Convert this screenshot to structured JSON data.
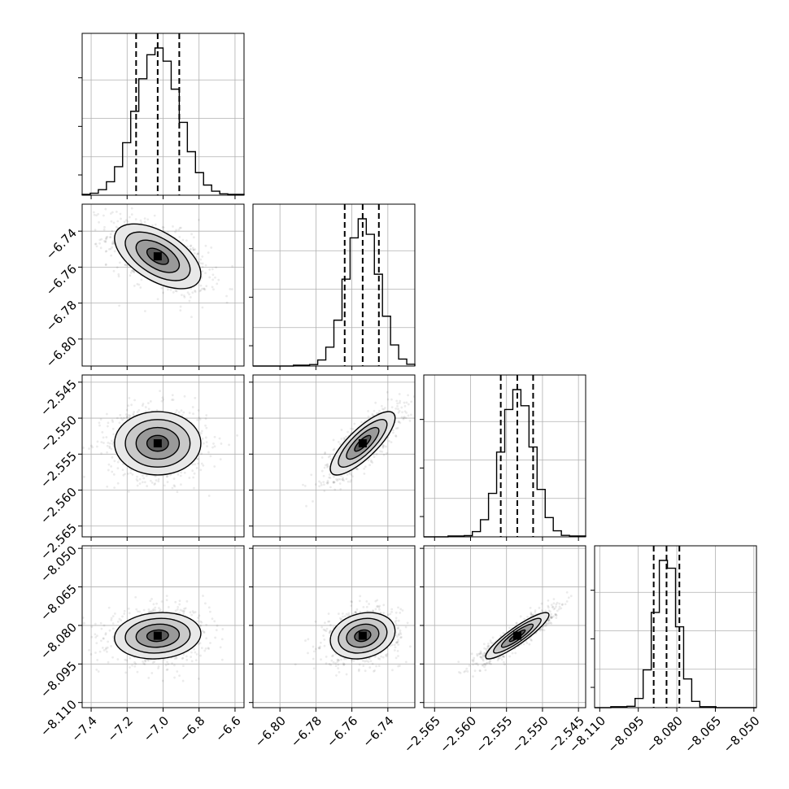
{
  "chart_data": {
    "type": "corner",
    "parameters": [
      {
        "mean": -7.03,
        "sd": 0.12,
        "quantiles": [
          -7.15,
          -7.03,
          -6.91
        ],
        "range": [
          -7.45,
          -6.55
        ],
        "ticks": [
          -7.4,
          -7.2,
          -7.0,
          -6.8,
          -6.6
        ],
        "tick_labels": [
          "−7.4",
          "−7.2",
          "−7.0",
          "−6.8",
          "−6.6"
        ]
      },
      {
        "mean": -6.754,
        "sd": 0.009,
        "quantiles": [
          -6.764,
          -6.754,
          -6.745
        ],
        "range": [
          -6.815,
          -6.725
        ],
        "ticks": [
          -6.8,
          -6.78,
          -6.76,
          -6.74
        ],
        "tick_labels": [
          "−6.80",
          "−6.78",
          "−6.76",
          "−6.74"
        ]
      },
      {
        "mean": -2.5535,
        "sd": 0.0022,
        "quantiles": [
          -2.5558,
          -2.5535,
          -2.5513
        ],
        "range": [
          -2.5665,
          -2.544
        ],
        "ticks": [
          -2.565,
          -2.56,
          -2.555,
          -2.55,
          -2.545
        ],
        "tick_labels": [
          "−2.565",
          "−2.560",
          "−2.555",
          "−2.550",
          "−2.545"
        ]
      },
      {
        "mean": -8.084,
        "sd": 0.0045,
        "quantiles": [
          -8.089,
          -8.084,
          -8.079
        ],
        "range": [
          -8.112,
          -8.049
        ],
        "ticks": [
          -8.11,
          -8.095,
          -8.08,
          -8.065,
          -8.05
        ],
        "tick_labels": [
          "−8.110",
          "−8.095",
          "−8.080",
          "−8.065",
          "−8.050"
        ]
      }
    ],
    "correlations": [
      [
        1.0,
        -0.55,
        0.0,
        0.1
      ],
      [
        -0.55,
        1.0,
        0.8,
        0.2
      ],
      [
        0.0,
        0.8,
        1.0,
        0.9
      ],
      [
        0.1,
        0.2,
        0.9,
        1.0
      ]
    ],
    "histogram_bins": 20,
    "contour_levels_sigma": [
      0.5,
      1.0,
      1.5,
      2.0
    ],
    "grid": true
  }
}
